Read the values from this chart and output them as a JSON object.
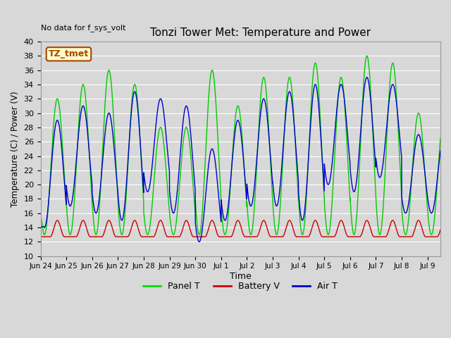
{
  "title": "Tonzi Tower Met: Temperature and Power",
  "top_left_note": "No data for f_sys_volt",
  "xlabel": "Time",
  "ylabel": "Temperature (C) / Power (V)",
  "ylim": [
    10,
    40
  ],
  "bg_color": "#d8d8d8",
  "plot_bg_color": "#d8d8d8",
  "grid_color": "#ffffff",
  "legend_labels": [
    "Panel T",
    "Battery V",
    "Air T"
  ],
  "legend_colors": [
    "#00dd00",
    "#cc0000",
    "#0000cc"
  ],
  "annotation_box": "TZ_tmet",
  "annotation_color": "#aa4400",
  "annotation_bg": "#ffffcc",
  "line_colors": {
    "panel": "#00cc00",
    "battery": "#cc0000",
    "air": "#0000cc"
  },
  "x_tick_labels": [
    "Jun 24",
    "Jun 25",
    "Jun 26",
    "Jun 27",
    "Jun 28",
    "Jun 29",
    "Jun 30",
    "Jul 1",
    "Jul 2",
    "Jul 3",
    "Jul 4",
    "Jul 5",
    "Jul 6",
    "Jul 7",
    "Jul 8",
    "Jul 9"
  ],
  "panel_peaks": [
    32,
    34,
    36,
    34,
    28,
    28,
    36,
    31,
    35,
    35,
    37,
    35,
    38,
    37,
    30
  ],
  "panel_troughs": [
    13,
    13,
    13,
    13,
    13,
    13,
    13,
    13,
    13,
    13,
    13,
    13,
    13,
    13,
    13
  ],
  "air_peaks": [
    29,
    31,
    30,
    33,
    32,
    31,
    25,
    29,
    32,
    33,
    34,
    34,
    35,
    34,
    27
  ],
  "air_troughs": [
    14,
    17,
    16,
    15,
    19,
    16,
    12,
    15,
    17,
    17,
    15,
    20,
    19,
    21,
    16
  ],
  "batt_base": 12.7,
  "batt_bump": 2.3,
  "figsize": [
    6.4,
    4.8
  ],
  "dpi": 100
}
